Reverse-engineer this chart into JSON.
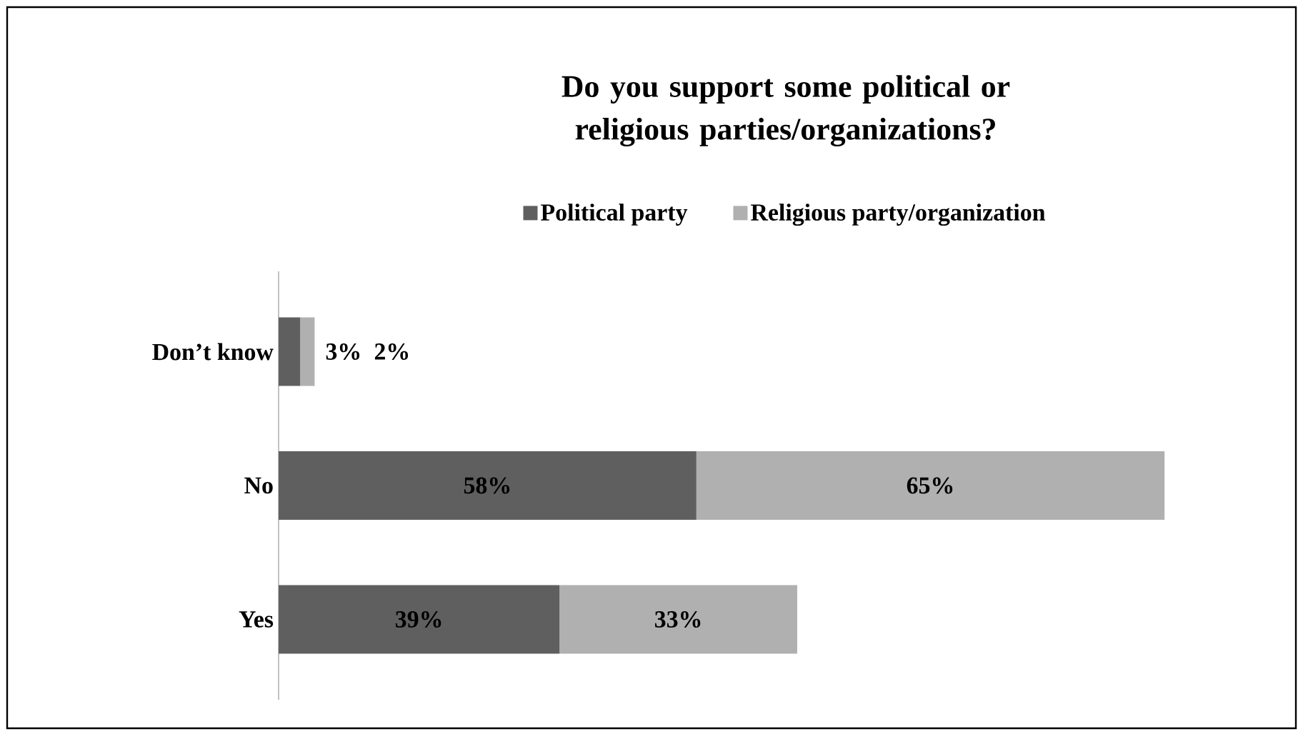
{
  "chart_data": {
    "type": "bar",
    "orientation": "horizontal",
    "stacked": true,
    "title": "Do you support some political or religious parties/organizations?",
    "categories": [
      "Don’t know",
      "No",
      "Yes"
    ],
    "legend": "top",
    "series": [
      {
        "name": "Political party",
        "color": "#5f5f5f",
        "values": [
          3,
          58,
          39
        ],
        "value_labels": [
          "3%",
          "58%",
          "39%"
        ]
      },
      {
        "name": "Religious party/organization",
        "color": "#b0b0b0",
        "values": [
          2,
          65,
          33
        ],
        "value_labels": [
          "2%",
          "65%",
          "33%"
        ]
      }
    ]
  }
}
